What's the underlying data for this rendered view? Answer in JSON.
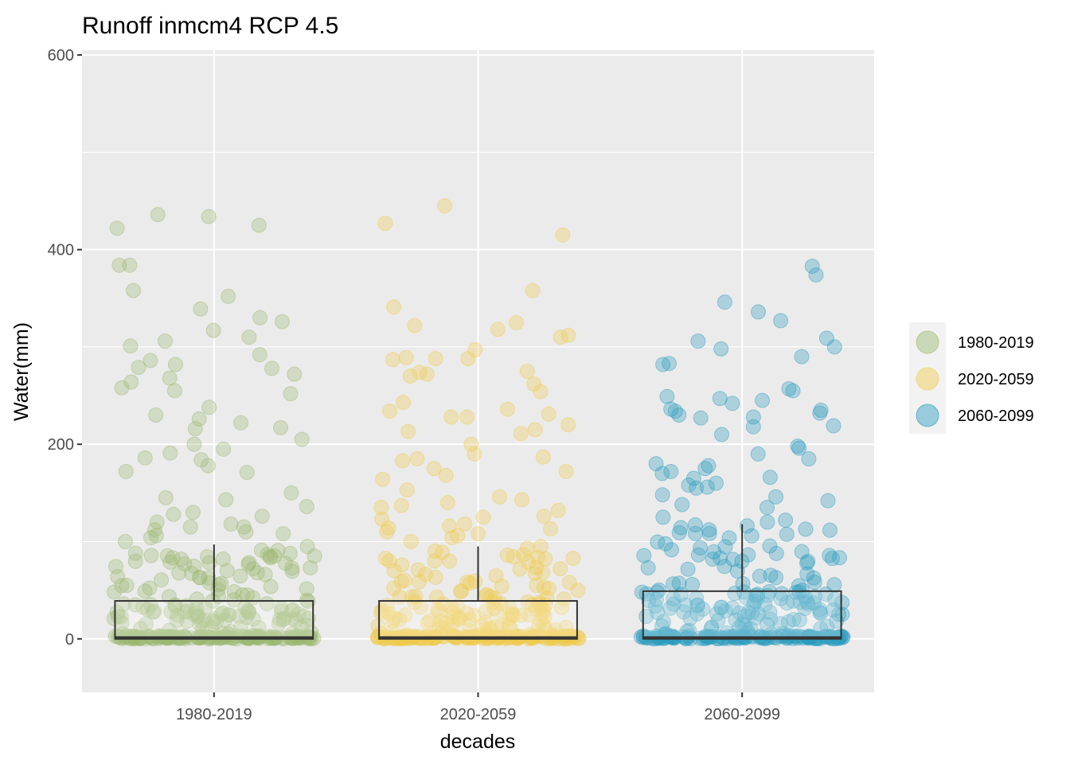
{
  "chart_data": {
    "type": "box",
    "title": "Runoff inmcm4 RCP 4.5",
    "xlabel": "decades",
    "ylabel": "Water(mm)",
    "ylim": [
      -55,
      605
    ],
    "yticks": [
      0,
      200,
      400,
      600
    ],
    "grid": true,
    "legend_placement": "right",
    "categories": [
      "1980-2019",
      "2020-2059",
      "2060-2099"
    ],
    "colors": [
      "#9cb870",
      "#efcb4e",
      "#2a9bbf"
    ],
    "boxes": [
      {
        "category": "1980-2019",
        "min": 0,
        "q1": 0,
        "median": 1,
        "q3": 39,
        "max": 97
      },
      {
        "category": "2020-2059",
        "min": 0,
        "q1": 0,
        "median": 1,
        "q3": 39,
        "max": 95
      },
      {
        "category": "2060-2099",
        "min": 0,
        "q1": 0,
        "median": 1,
        "q3": 49,
        "max": 118
      }
    ],
    "outliers": [
      {
        "category": "1980-2019",
        "values": [
          434,
          436,
          425,
          422,
          384,
          384,
          358,
          352,
          339,
          330,
          326,
          317,
          310,
          306,
          301,
          292,
          286,
          282,
          279,
          278,
          272,
          268,
          264,
          258,
          255,
          252,
          238,
          230,
          226,
          222,
          217,
          216,
          205,
          200,
          195,
          191,
          186,
          184,
          178,
          172,
          171,
          150,
          145,
          143,
          136,
          130,
          128,
          126,
          120,
          118,
          115,
          115,
          112,
          110,
          108,
          106,
          104,
          100
        ]
      },
      {
        "category": "2020-2059",
        "values": [
          445,
          427,
          415,
          358,
          341,
          325,
          322,
          318,
          312,
          310,
          297,
          289,
          288,
          288,
          287,
          275,
          274,
          272,
          270,
          262,
          254,
          243,
          236,
          234,
          231,
          228,
          228,
          220,
          215,
          213,
          211,
          200,
          190,
          187,
          185,
          183,
          175,
          172,
          168,
          164,
          153,
          146,
          143,
          140,
          137,
          135,
          132,
          126,
          125,
          123,
          118,
          116,
          114,
          113,
          110,
          108,
          106,
          104,
          100
        ]
      },
      {
        "category": "2060-2099",
        "values": [
          383,
          374,
          346,
          336,
          327,
          309,
          306,
          300,
          298,
          290,
          283,
          282,
          257,
          255,
          249,
          247,
          245,
          242,
          236,
          235,
          234,
          232,
          230,
          228,
          227,
          219,
          218,
          210,
          198,
          196,
          190,
          185,
          180,
          178,
          175,
          172,
          170,
          166,
          165,
          160,
          158,
          156,
          155,
          148,
          146,
          142,
          138,
          135,
          125,
          122,
          120
        ]
      }
    ]
  }
}
